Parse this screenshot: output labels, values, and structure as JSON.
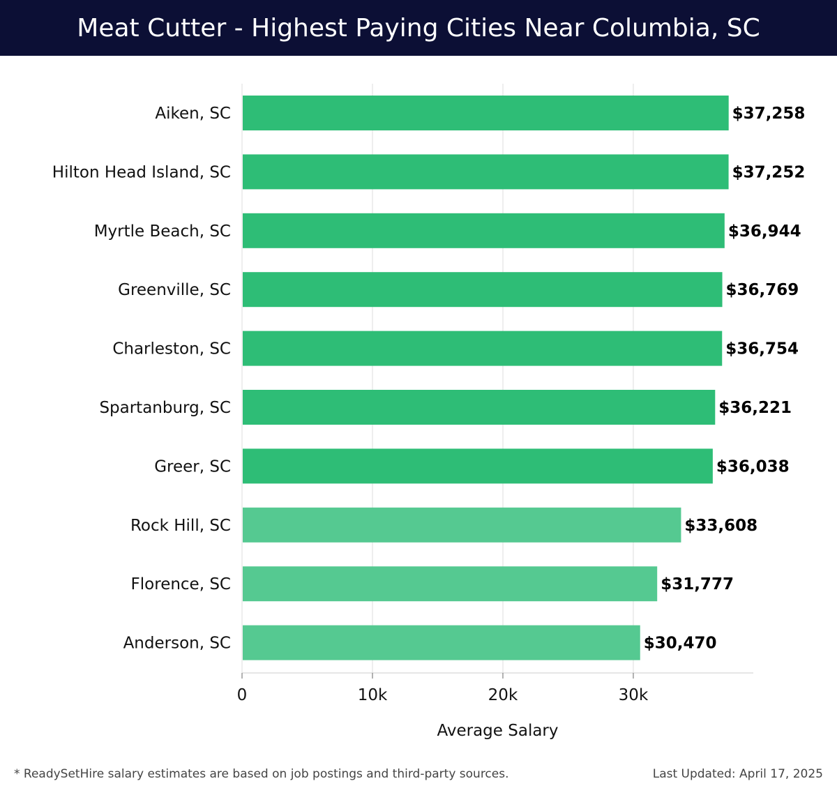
{
  "header": {
    "title": "Meat Cutter - Highest Paying Cities Near Columbia, SC"
  },
  "colors": {
    "header_bg": "#0c0f35",
    "bar_strong": "#2ebd76",
    "bar_light": "#55c991",
    "grid": "#dddddd"
  },
  "chart_data": {
    "type": "bar",
    "orientation": "horizontal",
    "categories": [
      "Aiken, SC",
      "Hilton Head Island, SC",
      "Myrtle Beach, SC",
      "Greenville, SC",
      "Charleston, SC",
      "Spartanburg, SC",
      "Greer, SC",
      "Rock Hill, SC",
      "Florence, SC",
      "Anderson, SC"
    ],
    "values": [
      37258,
      37252,
      36944,
      36769,
      36754,
      36221,
      36038,
      33608,
      31777,
      30470
    ],
    "value_labels": [
      "$37,258",
      "$37,252",
      "$36,944",
      "$36,769",
      "$36,754",
      "$36,221",
      "$36,038",
      "$33,608",
      "$31,777",
      "$30,470"
    ],
    "xlabel": "Average Salary",
    "ylabel": "",
    "xlim": [
      0,
      39200
    ],
    "xticks": [
      0,
      10000,
      20000,
      30000
    ],
    "xtick_labels": [
      "0",
      "10k",
      "20k",
      "30k"
    ],
    "grid": true
  },
  "footer": {
    "note": "* ReadySetHire salary estimates are based on job postings and third-party sources.",
    "updated": "Last Updated: April 17, 2025"
  }
}
